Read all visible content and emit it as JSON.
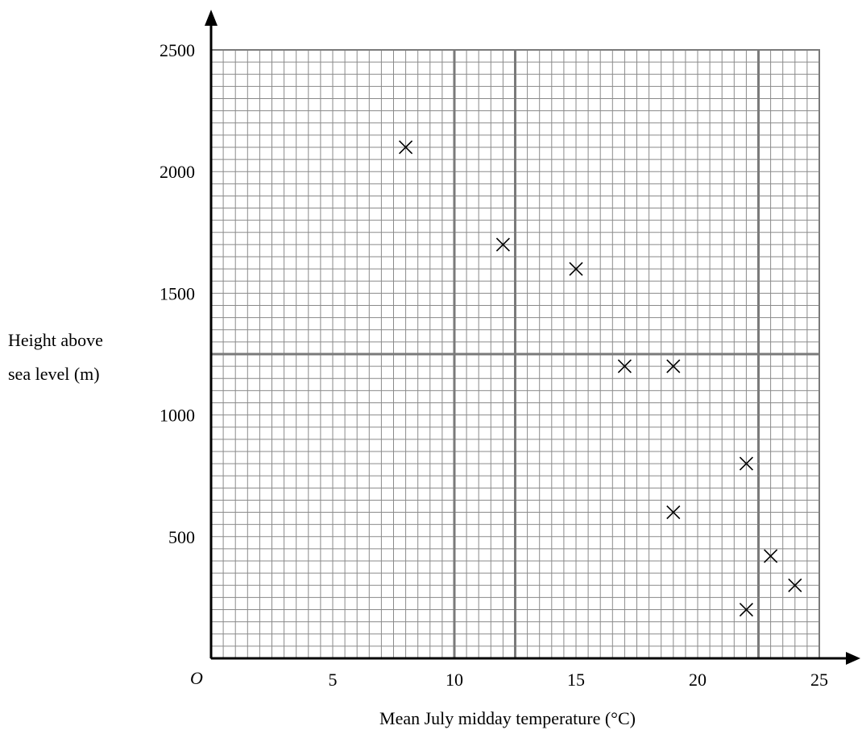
{
  "chart_data": {
    "type": "scatter",
    "xlabel": "Mean July midday temperature (°C)",
    "ylabel_lines": [
      "Height above",
      "sea level (m)"
    ],
    "origin_label": "O",
    "xlim": [
      0,
      25
    ],
    "ylim": [
      0,
      2500
    ],
    "x_ticks": [
      5,
      10,
      15,
      20,
      25
    ],
    "y_ticks": [
      500,
      1000,
      1500,
      2000,
      2500
    ],
    "minor_grid": {
      "x_step": 0.5,
      "y_step": 50
    },
    "major_grid": {
      "x": [
        10,
        12.5,
        22.5
      ],
      "y": [
        1250
      ]
    },
    "marker": "cross",
    "points": [
      {
        "x": 8,
        "y": 2100
      },
      {
        "x": 12,
        "y": 1700
      },
      {
        "x": 15,
        "y": 1600
      },
      {
        "x": 17,
        "y": 1200
      },
      {
        "x": 19,
        "y": 1200
      },
      {
        "x": 22,
        "y": 800
      },
      {
        "x": 19,
        "y": 600
      },
      {
        "x": 23,
        "y": 420
      },
      {
        "x": 24,
        "y": 300
      },
      {
        "x": 22,
        "y": 200
      }
    ]
  }
}
